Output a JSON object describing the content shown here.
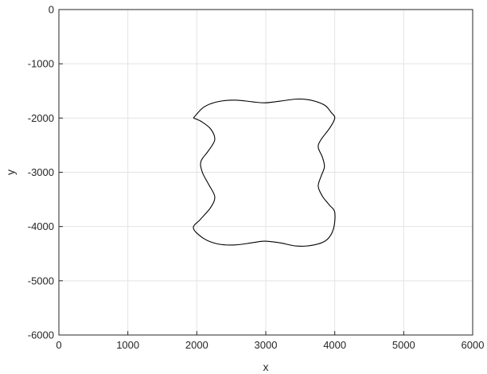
{
  "chart_data": {
    "type": "line",
    "title": "",
    "xlabel": "x",
    "ylabel": "y",
    "xlim": [
      0,
      6000
    ],
    "ylim": [
      -6000,
      0
    ],
    "xticks": [
      0,
      1000,
      2000,
      3000,
      4000,
      5000,
      6000
    ],
    "yticks": [
      0,
      -1000,
      -2000,
      -3000,
      -4000,
      -5000,
      -6000
    ],
    "xtick_labels": [
      "0",
      "1000",
      "2000",
      "3000",
      "4000",
      "5000",
      "6000"
    ],
    "ytick_labels": [
      "0",
      "-1000",
      "-2000",
      "-3000",
      "-4000",
      "-5000",
      "-6000"
    ],
    "grid": true,
    "line_color": "#000000",
    "series": [
      {
        "x": [
          1950,
          2100,
          2300,
          2550,
          2800,
          2980,
          3200,
          3450,
          3650,
          3850,
          3950,
          4000,
          3930,
          3800,
          3760,
          3820,
          3850,
          3800,
          3760,
          3820,
          3920,
          4000,
          3980,
          3880,
          3700,
          3450,
          3200,
          2980,
          2800,
          2550,
          2300,
          2100,
          1950,
          2050,
          2200,
          2260,
          2170,
          2080,
          2060,
          2170,
          2260,
          2200,
          2060,
          1950
        ],
        "y": [
          -2000,
          -1800,
          -1700,
          -1670,
          -1700,
          -1720,
          -1690,
          -1650,
          -1670,
          -1760,
          -1900,
          -2000,
          -2180,
          -2400,
          -2540,
          -2720,
          -2900,
          -3080,
          -3260,
          -3440,
          -3600,
          -3740,
          -4050,
          -4250,
          -4340,
          -4360,
          -4300,
          -4270,
          -4300,
          -4340,
          -4320,
          -4220,
          -4030,
          -3870,
          -3650,
          -3450,
          -3220,
          -3000,
          -2800,
          -2600,
          -2400,
          -2200,
          -2060,
          -2000
        ]
      }
    ]
  }
}
